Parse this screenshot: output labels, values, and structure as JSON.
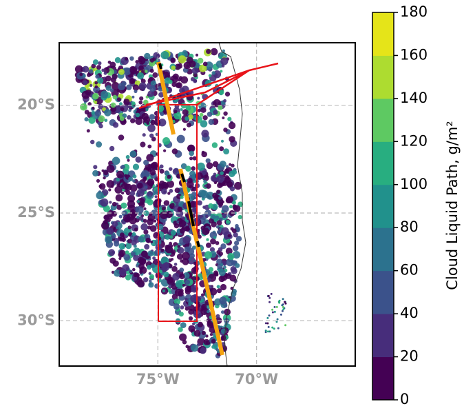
{
  "chart_data": {
    "type": "map",
    "xlim": [
      -80,
      -65
    ],
    "ylim": [
      -32.1,
      -17.1
    ],
    "xticks": [
      {
        "value": -75,
        "label": "75°W"
      },
      {
        "value": -70,
        "label": "70°W"
      }
    ],
    "yticks": [
      {
        "value": -20,
        "label": "20°S"
      },
      {
        "value": -25,
        "label": "25°S"
      },
      {
        "value": -30,
        "label": "30°S"
      }
    ],
    "grid": true,
    "colorbar": {
      "label": "Cloud Liquid Path, g/m²",
      "clim": [
        0,
        180
      ],
      "ticks": [
        0,
        20,
        40,
        60,
        80,
        100,
        120,
        140,
        160,
        180
      ],
      "colors": [
        "#440154",
        "#472d7b",
        "#3b528b",
        "#2c728e",
        "#21918c",
        "#28ae80",
        "#5ec962",
        "#addc30",
        "#e5e419"
      ]
    }
  }
}
